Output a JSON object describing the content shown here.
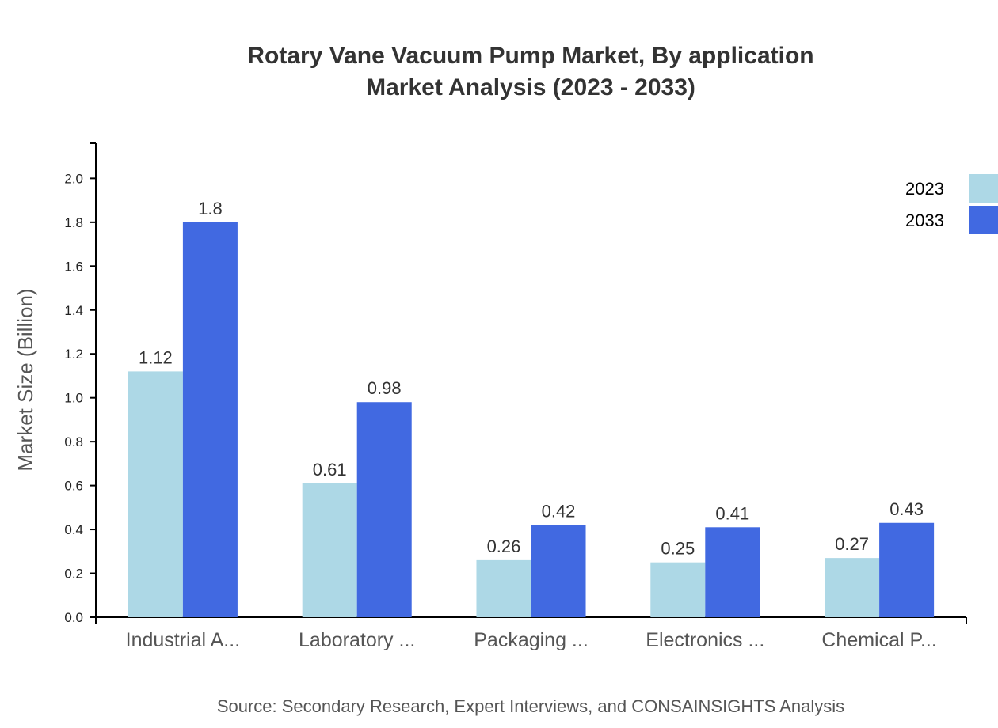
{
  "chart_data": {
    "type": "bar",
    "title": "Rotary Vane Vacuum Pump Market, By application",
    "subtitle": "Market Analysis (2023 - 2033)",
    "ylabel": "Market Size (Billion)",
    "xlabel": "",
    "ylim": [
      0,
      2.16
    ],
    "yticks": [
      "0.0",
      "0.2",
      "0.4",
      "0.6",
      "0.8",
      "1.0",
      "1.2",
      "1.4",
      "1.6",
      "1.8",
      "2.0"
    ],
    "categories": [
      "Industrial A...",
      "Laboratory ...",
      "Packaging ...",
      "Electronics ...",
      "Chemical P..."
    ],
    "series": [
      {
        "name": "2023",
        "color": "#ADD8E6",
        "values": [
          1.12,
          0.61,
          0.26,
          0.25,
          0.27
        ]
      },
      {
        "name": "2033",
        "color": "#4169E1",
        "values": [
          1.8,
          0.98,
          0.42,
          0.41,
          0.43
        ]
      }
    ],
    "legend_position": "top-right",
    "grid": false,
    "source": "Source: Secondary Research, Expert Interviews, and CONSAINSIGHTS Analysis"
  }
}
